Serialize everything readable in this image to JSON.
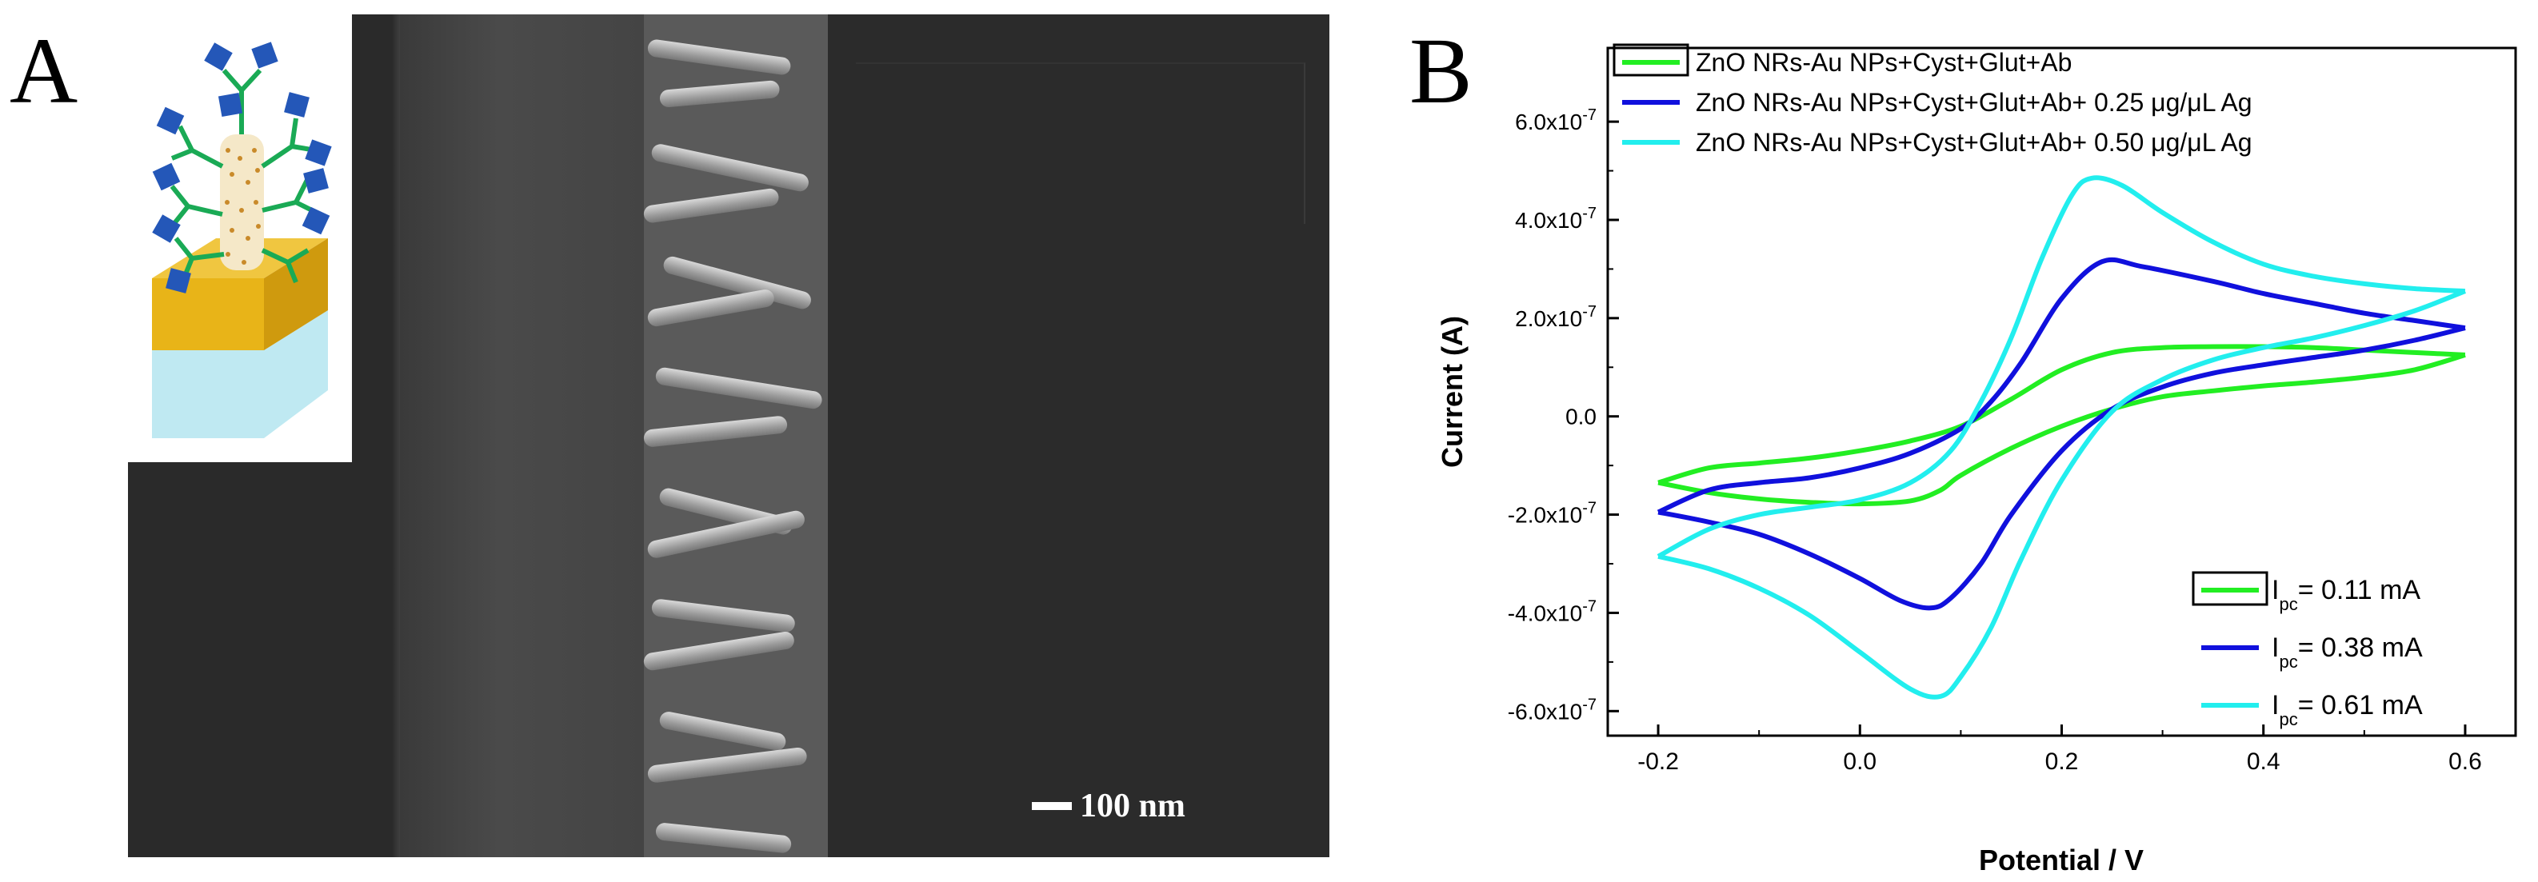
{
  "panel_a": {
    "letter": "A",
    "scale_bar_label": "100 nm"
  },
  "panel_b": {
    "letter": "B"
  },
  "chart_data": {
    "type": "line",
    "xlabel": "Potential / V",
    "ylabel": "Current (A)",
    "xlim": [
      -0.25,
      0.65
    ],
    "ylim": [
      -6.5e-07,
      7.5e-07
    ],
    "xticks": [
      -0.2,
      0.0,
      0.2,
      0.4,
      0.6
    ],
    "xtick_labels": [
      "-0.2",
      "0.0",
      "0.2",
      "0.4",
      "0.6"
    ],
    "yticks": [
      6e-07,
      4e-07,
      2e-07,
      0,
      -2e-07,
      -4e-07,
      -6e-07
    ],
    "ytick_labels": [
      {
        "mantissa": "6.0x10",
        "exp": "-7"
      },
      {
        "mantissa": "4.0x10",
        "exp": "-7"
      },
      {
        "mantissa": "2.0x10",
        "exp": "-7"
      },
      {
        "mantissa": "0.0",
        "exp": ""
      },
      {
        "mantissa": "-2.0x10",
        "exp": "-7"
      },
      {
        "mantissa": "-4.0x10",
        "exp": "-7"
      },
      {
        "mantissa": "-6.0x10",
        "exp": "-7"
      }
    ],
    "grid": false,
    "legend_position": "top",
    "series": [
      {
        "name": "ZnO NRs-Au NPs+Cyst+Glut+Ab",
        "color": "#22ee22",
        "forward": [
          [
            -0.2,
            -1.35e-07
          ],
          [
            -0.15,
            -1.05e-07
          ],
          [
            -0.1,
            -9.5e-08
          ],
          [
            -0.05,
            -8.5e-08
          ],
          [
            0.0,
            -7e-08
          ],
          [
            0.05,
            -5e-08
          ],
          [
            0.1,
            -2e-08
          ],
          [
            0.15,
            3.5e-08
          ],
          [
            0.2,
            9.5e-08
          ],
          [
            0.25,
            1.3e-07
          ],
          [
            0.3,
            1.4e-07
          ],
          [
            0.35,
            1.42e-07
          ],
          [
            0.4,
            1.42e-07
          ],
          [
            0.45,
            1.4e-07
          ],
          [
            0.5,
            1.35e-07
          ],
          [
            0.55,
            1.3e-07
          ],
          [
            0.6,
            1.25e-07
          ]
        ],
        "reverse": [
          [
            0.6,
            1.25e-07
          ],
          [
            0.55,
            9.5e-08
          ],
          [
            0.5,
            8e-08
          ],
          [
            0.45,
            7e-08
          ],
          [
            0.4,
            6.2e-08
          ],
          [
            0.35,
            5.2e-08
          ],
          [
            0.3,
            4e-08
          ],
          [
            0.25,
            1.5e-08
          ],
          [
            0.2,
            -2e-08
          ],
          [
            0.15,
            -6.5e-08
          ],
          [
            0.1,
            -1.2e-07
          ],
          [
            0.08,
            -1.5e-07
          ],
          [
            0.05,
            -1.72e-07
          ],
          [
            0.0,
            -1.78e-07
          ],
          [
            -0.05,
            -1.75e-07
          ],
          [
            -0.1,
            -1.68e-07
          ],
          [
            -0.15,
            -1.55e-07
          ],
          [
            -0.2,
            -1.35e-07
          ]
        ]
      },
      {
        "name": "ZnO NRs-Au NPs+Cyst+Glut+Ab+ 0.25 μg/μL Ag",
        "color": "#1010dd",
        "forward": [
          [
            -0.2,
            -1.95e-07
          ],
          [
            -0.15,
            -1.5e-07
          ],
          [
            -0.1,
            -1.35e-07
          ],
          [
            -0.05,
            -1.25e-07
          ],
          [
            0.0,
            -1.05e-07
          ],
          [
            0.05,
            -7.5e-08
          ],
          [
            0.1,
            -2.5e-08
          ],
          [
            0.13,
            3e-08
          ],
          [
            0.16,
            1.1e-07
          ],
          [
            0.2,
            2.4e-07
          ],
          [
            0.24,
            3.15e-07
          ],
          [
            0.28,
            3.05e-07
          ],
          [
            0.35,
            2.75e-07
          ],
          [
            0.4,
            2.5e-07
          ],
          [
            0.45,
            2.3e-07
          ],
          [
            0.5,
            2.1e-07
          ],
          [
            0.55,
            1.95e-07
          ],
          [
            0.6,
            1.8e-07
          ]
        ],
        "reverse": [
          [
            0.6,
            1.8e-07
          ],
          [
            0.55,
            1.55e-07
          ],
          [
            0.5,
            1.35e-07
          ],
          [
            0.45,
            1.2e-07
          ],
          [
            0.4,
            1.05e-07
          ],
          [
            0.35,
            8.8e-08
          ],
          [
            0.3,
            6e-08
          ],
          [
            0.25,
            1.5e-08
          ],
          [
            0.2,
            -7e-08
          ],
          [
            0.15,
            -2e-07
          ],
          [
            0.12,
            -3e-07
          ],
          [
            0.09,
            -3.7e-07
          ],
          [
            0.07,
            -3.9e-07
          ],
          [
            0.04,
            -3.75e-07
          ],
          [
            0.0,
            -3.3e-07
          ],
          [
            -0.05,
            -2.8e-07
          ],
          [
            -0.1,
            -2.4e-07
          ],
          [
            -0.15,
            -2.15e-07
          ],
          [
            -0.2,
            -1.95e-07
          ]
        ]
      },
      {
        "name": "ZnO NRs-Au NPs+Cyst+Glut+Ab+ 0.50 μg/μL Ag",
        "color": "#22eeee",
        "forward": [
          [
            -0.2,
            -2.85e-07
          ],
          [
            -0.15,
            -2.3e-07
          ],
          [
            -0.1,
            -2e-07
          ],
          [
            -0.05,
            -1.85e-07
          ],
          [
            0.0,
            -1.7e-07
          ],
          [
            0.05,
            -1.35e-07
          ],
          [
            0.09,
            -7e-08
          ],
          [
            0.12,
            3e-08
          ],
          [
            0.15,
            1.6e-07
          ],
          [
            0.18,
            3.2e-07
          ],
          [
            0.21,
            4.5e-07
          ],
          [
            0.23,
            4.85e-07
          ],
          [
            0.26,
            4.7e-07
          ],
          [
            0.3,
            4.15e-07
          ],
          [
            0.35,
            3.55e-07
          ],
          [
            0.4,
            3.1e-07
          ],
          [
            0.45,
            2.85e-07
          ],
          [
            0.5,
            2.7e-07
          ],
          [
            0.55,
            2.6e-07
          ],
          [
            0.6,
            2.55e-07
          ]
        ],
        "reverse": [
          [
            0.6,
            2.55e-07
          ],
          [
            0.55,
            2.15e-07
          ],
          [
            0.5,
            1.85e-07
          ],
          [
            0.45,
            1.6e-07
          ],
          [
            0.4,
            1.4e-07
          ],
          [
            0.35,
            1.15e-07
          ],
          [
            0.3,
            7.5e-08
          ],
          [
            0.25,
            1e-08
          ],
          [
            0.2,
            -1.3e-07
          ],
          [
            0.16,
            -2.9e-07
          ],
          [
            0.13,
            -4.3e-07
          ],
          [
            0.1,
            -5.3e-07
          ],
          [
            0.08,
            -5.7e-07
          ],
          [
            0.05,
            -5.55e-07
          ],
          [
            0.0,
            -4.8e-07
          ],
          [
            -0.05,
            -4.05e-07
          ],
          [
            -0.1,
            -3.5e-07
          ],
          [
            -0.15,
            -3.1e-07
          ],
          [
            -0.2,
            -2.85e-07
          ]
        ]
      }
    ],
    "ipc_legend": [
      {
        "prefix": "I",
        "sub": "pc",
        "text": "= 0.11 mA",
        "color": "#22ee22"
      },
      {
        "prefix": "I",
        "sub": "pc",
        "text": "= 0.38 mA",
        "color": "#1010dd"
      },
      {
        "prefix": "I",
        "sub": "pc",
        "text": "= 0.61 mA",
        "color": "#22eeee"
      }
    ]
  }
}
